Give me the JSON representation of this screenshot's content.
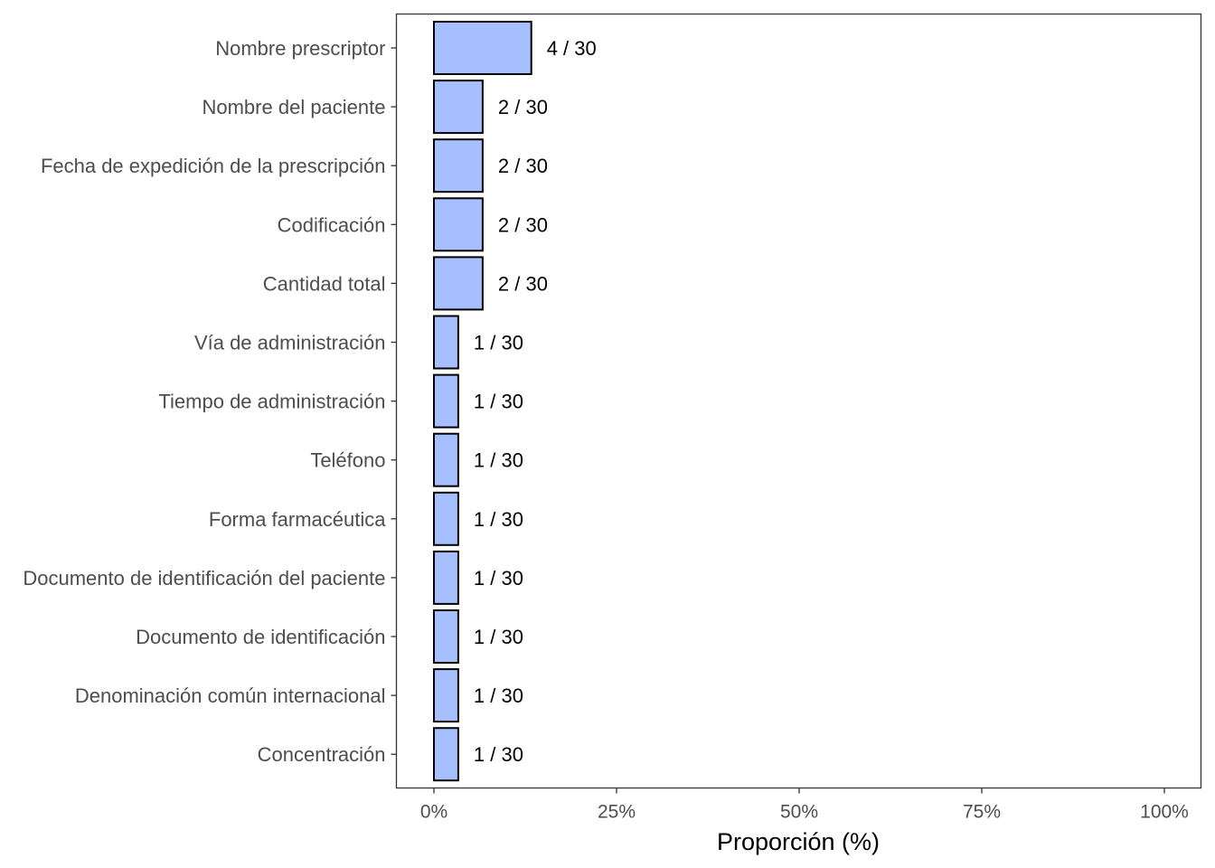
{
  "chart_data": {
    "type": "bar",
    "orientation": "horizontal",
    "categories": [
      "Nombre prescriptor",
      "Nombre del paciente",
      "Fecha de expedición de la prescripción",
      "Codificación",
      "Cantidad total",
      "Vía de administración",
      "Tiempo de administración",
      "Teléfono",
      "Forma farmacéutica",
      "Documento de identificación del paciente",
      "Documento de identificación",
      "Denominación común internacional",
      "Concentración"
    ],
    "values": [
      0.1333,
      0.0667,
      0.0667,
      0.0667,
      0.0667,
      0.0333,
      0.0333,
      0.0333,
      0.0333,
      0.0333,
      0.0333,
      0.0333,
      0.0333
    ],
    "data_labels": [
      "4 / 30",
      "2 / 30",
      "2 / 30",
      "2 / 30",
      "2 / 30",
      "1 / 30",
      "1 / 30",
      "1 / 30",
      "1 / 30",
      "1 / 30",
      "1 / 30",
      "1 / 30",
      "1 / 30"
    ],
    "xlabel": "Proporción (%)",
    "ylabel": "",
    "xlim": [
      0,
      1
    ],
    "x_ticks": [
      0,
      0.25,
      0.5,
      0.75,
      1
    ],
    "x_tick_labels": [
      "0%",
      "25%",
      "50%",
      "75%",
      "100%"
    ],
    "grid": false,
    "bar_color": "#a6c0ff",
    "bar_edge_color": "#000000"
  }
}
